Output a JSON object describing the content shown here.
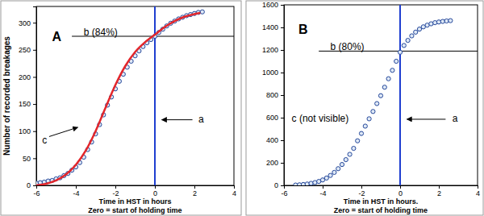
{
  "chart_data": [
    {
      "type": "scatter",
      "ylabel": "Number of recorded breakages",
      "xlabel": [
        "Time in HST in hours",
        "Zero = start of holding time"
      ],
      "xlim": [
        -6,
        4
      ],
      "xticks": [
        -6,
        -4,
        -2,
        0,
        2,
        4
      ],
      "ylim": [
        0,
        330
      ],
      "yticks": [
        0,
        50,
        100,
        150,
        200,
        250,
        300
      ],
      "grid": false,
      "series": [
        {
          "type": "scatter",
          "marker": "circle",
          "color": "#24479a",
          "x": [
            -6,
            -5.8,
            -5.6,
            -5.4,
            -5.2,
            -5,
            -4.8,
            -4.6,
            -4.4,
            -4.2,
            -4,
            -3.8,
            -3.6,
            -3.4,
            -3.2,
            -3,
            -2.8,
            -2.6,
            -2.4,
            -2.2,
            -2,
            -1.8,
            -1.6,
            -1.4,
            -1.2,
            -1,
            -0.8,
            -0.6,
            -0.4,
            -0.2,
            0,
            0.2,
            0.4,
            0.6,
            0.8,
            1,
            1.2,
            1.4,
            1.6,
            1.8,
            2,
            2.2,
            2.4
          ],
          "values": [
            4,
            5,
            6,
            8,
            9,
            12,
            14,
            18,
            22,
            28,
            34,
            42,
            52,
            66,
            80,
            95,
            112,
            130,
            148,
            163,
            178,
            192,
            205,
            218,
            229,
            239,
            248,
            256,
            263,
            269,
            275,
            282,
            288,
            294,
            299,
            303,
            307,
            310,
            313,
            315,
            317,
            319,
            320
          ]
        },
        {
          "type": "line",
          "line_style": "solid",
          "color": "#e3262b",
          "x": [
            -6,
            -5.5,
            -5,
            -4.5,
            -4,
            -3.5,
            -3,
            -2.5,
            -2,
            -1.5,
            -1,
            -0.5,
            0,
            0.5,
            1,
            1.5,
            2,
            2.3
          ],
          "values": [
            0,
            3,
            9,
            20,
            38,
            64,
            100,
            143,
            185,
            220,
            246,
            264,
            278,
            292,
            303,
            311,
            316,
            318
          ]
        }
      ],
      "hline": {
        "y": 275,
        "x": [
          -4.2,
          4
        ],
        "color": "#000000"
      },
      "vline": {
        "x": 0,
        "y": [
          0,
          330
        ],
        "color": "#1f3fd0"
      },
      "annotations": [
        {
          "text": "A",
          "x": -5.2,
          "y": 272
        },
        {
          "text": "b (84%)",
          "x": -3.6,
          "y": 281
        },
        {
          "text": "a",
          "x": 2.2,
          "y": 121,
          "arrow": [
            [
              1.9,
              121
            ],
            [
              0.35,
              121
            ]
          ]
        },
        {
          "text": "c",
          "x": -5.7,
          "y": 82,
          "arrow": [
            [
              -5.35,
              90
            ],
            [
              -3.9,
              107
            ]
          ]
        }
      ]
    },
    {
      "type": "scatter",
      "xlabel": [
        "Time in HST  in hours.",
        "Zero = start of holding time"
      ],
      "xlim": [
        -6,
        4
      ],
      "xticks": [
        -6,
        -4,
        -2,
        0,
        2,
        4
      ],
      "ylim": [
        0,
        1600
      ],
      "yticks": [
        0,
        200,
        400,
        600,
        800,
        1000,
        1200,
        1400,
        1600
      ],
      "grid": false,
      "series": [
        {
          "type": "scatter",
          "marker": "circle",
          "color": "#24479a",
          "x": [
            -5.4,
            -5.2,
            -5,
            -4.8,
            -4.6,
            -4.4,
            -4.2,
            -4,
            -3.8,
            -3.6,
            -3.4,
            -3.2,
            -3,
            -2.8,
            -2.6,
            -2.4,
            -2.2,
            -2,
            -1.8,
            -1.6,
            -1.4,
            -1.2,
            -1,
            -0.8,
            -0.6,
            -0.4,
            -0.2,
            0,
            0.2,
            0.4,
            0.6,
            0.8,
            1,
            1.2,
            1.4,
            1.6,
            1.8,
            2,
            2.2,
            2.4,
            2.6
          ],
          "values": [
            3,
            5,
            8,
            12,
            18,
            25,
            35,
            48,
            65,
            88,
            115,
            148,
            185,
            228,
            275,
            328,
            395,
            460,
            525,
            590,
            655,
            725,
            795,
            870,
            945,
            1020,
            1100,
            1180,
            1240,
            1285,
            1325,
            1358,
            1385,
            1405,
            1420,
            1432,
            1442,
            1448,
            1453,
            1457,
            1460
          ]
        }
      ],
      "hline": {
        "y": 1190,
        "x": [
          -4.2,
          4
        ],
        "color": "#000000"
      },
      "vline": {
        "x": 0,
        "y": [
          0,
          1600
        ],
        "color": "#1f3fd0"
      },
      "annotations": [
        {
          "text": "B",
          "x": -5.25,
          "y": 1370
        },
        {
          "text": "b (80%)",
          "x": -3.6,
          "y": 1225
        },
        {
          "text": "a",
          "x": 2.7,
          "y": 586,
          "arrow": [
            [
              2.35,
              586
            ],
            [
              0.35,
              586
            ]
          ]
        },
        {
          "text": "c (not visible)",
          "x": -5.6,
          "y": 586
        }
      ]
    }
  ]
}
